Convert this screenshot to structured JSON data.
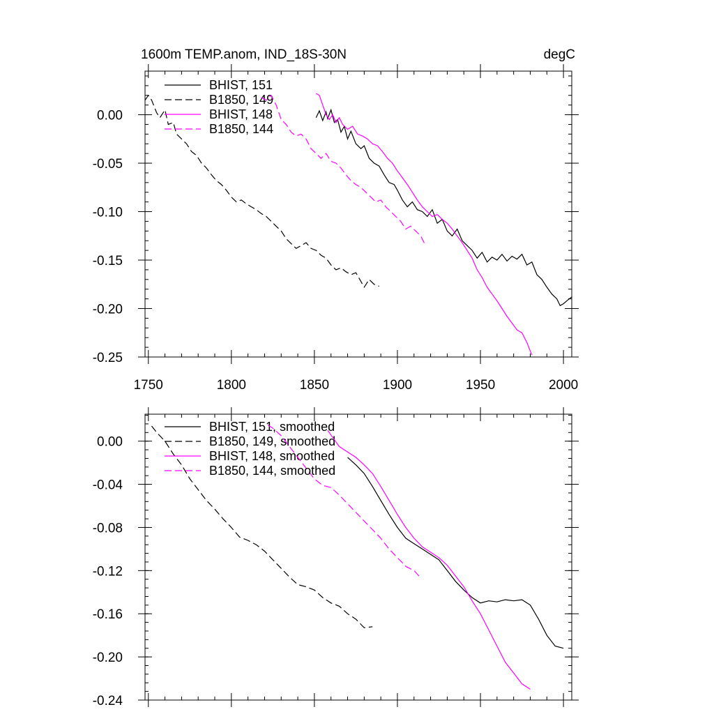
{
  "chart_data": [
    {
      "type": "line",
      "title": "1600m TEMP.anom, IND_18S-30N",
      "units": "degC",
      "xlabel": "",
      "ylabel": "",
      "xlim": [
        1748,
        2005
      ],
      "ylim": [
        -0.25,
        0.045
      ],
      "xticks": [
        1750,
        1800,
        1850,
        1900,
        1950,
        2000
      ],
      "xtick_labels": [
        "1750",
        "1800",
        "1850",
        "1900",
        "1950",
        "2000"
      ],
      "yticks": [
        0.0,
        -0.05,
        -0.1,
        -0.15,
        -0.2,
        -0.25
      ],
      "ytick_labels": [
        "0.00",
        "-0.05",
        "-0.10",
        "-0.15",
        "-0.20",
        "-0.25"
      ],
      "legend_position": "top-left",
      "series": [
        {
          "name": "BHIST, 151",
          "color": "#000000",
          "dash": "solid",
          "x": [
            1851,
            1853,
            1855,
            1857,
            1858,
            1860,
            1862,
            1864,
            1866,
            1868,
            1870,
            1872,
            1875,
            1878,
            1880,
            1883,
            1886,
            1889,
            1892,
            1895,
            1898,
            1900,
            1903,
            1906,
            1909,
            1912,
            1915,
            1918,
            1921,
            1924,
            1927,
            1930,
            1933,
            1936,
            1939,
            1942,
            1945,
            1948,
            1951,
            1954,
            1957,
            1960,
            1963,
            1966,
            1969,
            1972,
            1975,
            1978,
            1981,
            1984,
            1987,
            1990,
            1993,
            1996,
            1998,
            2000,
            2002,
            2005
          ],
          "y": [
            -0.003,
            0.004,
            -0.006,
            0.003,
            -0.004,
            0.005,
            -0.008,
            -0.005,
            -0.018,
            -0.012,
            -0.025,
            -0.017,
            -0.03,
            -0.035,
            -0.032,
            -0.045,
            -0.05,
            -0.053,
            -0.062,
            -0.07,
            -0.072,
            -0.078,
            -0.088,
            -0.095,
            -0.09,
            -0.098,
            -0.1,
            -0.105,
            -0.098,
            -0.112,
            -0.108,
            -0.12,
            -0.125,
            -0.118,
            -0.13,
            -0.135,
            -0.14,
            -0.148,
            -0.142,
            -0.152,
            -0.147,
            -0.15,
            -0.144,
            -0.151,
            -0.146,
            -0.149,
            -0.144,
            -0.155,
            -0.152,
            -0.165,
            -0.17,
            -0.178,
            -0.185,
            -0.19,
            -0.197,
            -0.195,
            -0.192,
            -0.188
          ]
        },
        {
          "name": "B1850, 149",
          "color": "#000000",
          "dash": "dashed",
          "x": [
            1748,
            1750,
            1752,
            1755,
            1757,
            1760,
            1762,
            1765,
            1767,
            1770,
            1773,
            1776,
            1779,
            1782,
            1785,
            1788,
            1791,
            1794,
            1797,
            1800,
            1803,
            1806,
            1809,
            1812,
            1815,
            1818,
            1821,
            1824,
            1827,
            1830,
            1833,
            1836,
            1839,
            1842,
            1845,
            1848,
            1851,
            1854,
            1857,
            1860,
            1863,
            1866,
            1869,
            1872,
            1875,
            1878,
            1880,
            1883,
            1886,
            1889
          ],
          "y": [
            0.015,
            0.02,
            0.015,
            0.002,
            -0.003,
            0.005,
            -0.01,
            -0.008,
            -0.02,
            -0.025,
            -0.03,
            -0.038,
            -0.042,
            -0.05,
            -0.055,
            -0.062,
            -0.068,
            -0.072,
            -0.078,
            -0.085,
            -0.09,
            -0.088,
            -0.092,
            -0.095,
            -0.098,
            -0.102,
            -0.105,
            -0.11,
            -0.115,
            -0.12,
            -0.128,
            -0.133,
            -0.138,
            -0.135,
            -0.132,
            -0.138,
            -0.14,
            -0.145,
            -0.148,
            -0.155,
            -0.16,
            -0.158,
            -0.162,
            -0.165,
            -0.163,
            -0.172,
            -0.178,
            -0.17,
            -0.175,
            -0.177
          ]
        },
        {
          "name": "BHIST, 148",
          "color": "#ff00ff",
          "dash": "solid",
          "x": [
            1851,
            1853,
            1855,
            1857,
            1859,
            1861,
            1863,
            1865,
            1867,
            1870,
            1873,
            1876,
            1879,
            1882,
            1885,
            1888,
            1891,
            1894,
            1897,
            1900,
            1903,
            1906,
            1909,
            1912,
            1915,
            1918,
            1921,
            1924,
            1927,
            1930,
            1933,
            1936,
            1939,
            1942,
            1945,
            1948,
            1951,
            1954,
            1957,
            1960,
            1963,
            1966,
            1969,
            1972,
            1975,
            1978,
            1981
          ],
          "y": [
            0.022,
            0.02,
            0.01,
            0.0,
            -0.005,
            0.0,
            -0.008,
            -0.003,
            -0.01,
            -0.015,
            -0.012,
            -0.02,
            -0.022,
            -0.025,
            -0.03,
            -0.032,
            -0.038,
            -0.045,
            -0.05,
            -0.058,
            -0.065,
            -0.072,
            -0.08,
            -0.088,
            -0.095,
            -0.1,
            -0.105,
            -0.103,
            -0.108,
            -0.112,
            -0.118,
            -0.125,
            -0.132,
            -0.14,
            -0.148,
            -0.16,
            -0.168,
            -0.178,
            -0.185,
            -0.192,
            -0.2,
            -0.208,
            -0.215,
            -0.222,
            -0.225,
            -0.235,
            -0.248
          ]
        },
        {
          "name": "B1850, 144",
          "color": "#ff00ff",
          "dash": "dashed",
          "x": [
            1818,
            1821,
            1824,
            1827,
            1830,
            1833,
            1836,
            1839,
            1842,
            1845,
            1848,
            1851,
            1854,
            1857,
            1860,
            1863,
            1866,
            1869,
            1872,
            1875,
            1878,
            1881,
            1884,
            1887,
            1890,
            1893,
            1896,
            1899,
            1902,
            1905,
            1908,
            1911,
            1914,
            1917
          ],
          "y": [
            0.018,
            0.015,
            0.02,
            0.01,
            -0.005,
            -0.01,
            -0.018,
            -0.022,
            -0.02,
            -0.025,
            -0.035,
            -0.04,
            -0.045,
            -0.04,
            -0.048,
            -0.05,
            -0.055,
            -0.062,
            -0.068,
            -0.072,
            -0.075,
            -0.08,
            -0.085,
            -0.09,
            -0.088,
            -0.095,
            -0.1,
            -0.105,
            -0.11,
            -0.118,
            -0.115,
            -0.12,
            -0.125,
            -0.135
          ]
        }
      ]
    },
    {
      "type": "line",
      "title": "",
      "xlabel": "",
      "ylabel": "",
      "xlim": [
        1748,
        2005
      ],
      "ylim": [
        -0.24,
        0.025
      ],
      "xticks": [
        1750,
        1800,
        1850,
        1900,
        1950,
        2000
      ],
      "yticks": [
        0.0,
        -0.04,
        -0.08,
        -0.12,
        -0.16,
        -0.2,
        -0.24
      ],
      "ytick_labels": [
        "0.00",
        "-0.04",
        "-0.08",
        "-0.12",
        "-0.16",
        "-0.20",
        "-0.24"
      ],
      "legend_position": "top-left",
      "series": [
        {
          "name": "BHIST, 151, smoothed",
          "color": "#000000",
          "dash": "solid",
          "x": [
            1870,
            1875,
            1880,
            1885,
            1890,
            1895,
            1900,
            1905,
            1910,
            1915,
            1920,
            1925,
            1930,
            1935,
            1940,
            1945,
            1950,
            1955,
            1960,
            1965,
            1970,
            1975,
            1980,
            1985,
            1990,
            1995,
            2000
          ],
          "y": [
            -0.015,
            -0.022,
            -0.03,
            -0.042,
            -0.055,
            -0.068,
            -0.08,
            -0.09,
            -0.095,
            -0.1,
            -0.105,
            -0.11,
            -0.12,
            -0.13,
            -0.138,
            -0.145,
            -0.15,
            -0.148,
            -0.149,
            -0.147,
            -0.148,
            -0.147,
            -0.152,
            -0.165,
            -0.18,
            -0.19,
            -0.192
          ]
        },
        {
          "name": "B1850, 149, smoothed",
          "color": "#000000",
          "dash": "dashed",
          "x": [
            1752,
            1755,
            1760,
            1765,
            1770,
            1775,
            1780,
            1785,
            1790,
            1795,
            1800,
            1805,
            1810,
            1815,
            1820,
            1825,
            1830,
            1835,
            1840,
            1845,
            1850,
            1855,
            1860,
            1865,
            1870,
            1875,
            1880,
            1885
          ],
          "y": [
            0.014,
            0.008,
            0.0,
            -0.012,
            -0.022,
            -0.035,
            -0.045,
            -0.055,
            -0.063,
            -0.072,
            -0.08,
            -0.089,
            -0.092,
            -0.096,
            -0.102,
            -0.11,
            -0.118,
            -0.126,
            -0.133,
            -0.135,
            -0.138,
            -0.145,
            -0.15,
            -0.153,
            -0.16,
            -0.165,
            -0.173,
            -0.172
          ]
        },
        {
          "name": "BHIST, 148, smoothed",
          "color": "#ff00ff",
          "dash": "solid",
          "x": [
            1858,
            1865,
            1870,
            1875,
            1880,
            1885,
            1890,
            1895,
            1900,
            1905,
            1910,
            1915,
            1920,
            1925,
            1930,
            1935,
            1940,
            1945,
            1950,
            1955,
            1960,
            1965,
            1970,
            1975,
            1980
          ],
          "y": [
            0.01,
            -0.005,
            -0.01,
            -0.015,
            -0.022,
            -0.03,
            -0.042,
            -0.055,
            -0.068,
            -0.08,
            -0.09,
            -0.098,
            -0.103,
            -0.108,
            -0.115,
            -0.125,
            -0.135,
            -0.148,
            -0.16,
            -0.175,
            -0.19,
            -0.205,
            -0.215,
            -0.225,
            -0.23
          ]
        },
        {
          "name": "B1850, 144, smoothed",
          "color": "#ff00ff",
          "dash": "dashed",
          "x": [
            1822,
            1825,
            1830,
            1835,
            1840,
            1845,
            1850,
            1855,
            1860,
            1865,
            1870,
            1875,
            1880,
            1885,
            1890,
            1895,
            1900,
            1905,
            1910,
            1913
          ],
          "y": [
            0.015,
            0.012,
            0.005,
            -0.005,
            -0.015,
            -0.025,
            -0.035,
            -0.041,
            -0.043,
            -0.05,
            -0.058,
            -0.066,
            -0.074,
            -0.082,
            -0.09,
            -0.1,
            -0.108,
            -0.116,
            -0.12,
            -0.125
          ]
        }
      ]
    }
  ]
}
